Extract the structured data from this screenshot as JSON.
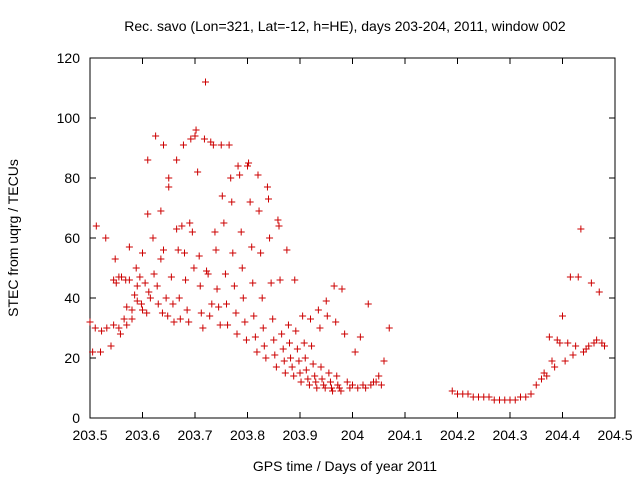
{
  "chart_data": {
    "type": "scatter",
    "title": "Rec. savo (Lon=321, Lat=-12, h=HE), days 203-204, 2011, window 002",
    "xlabel": "GPS time / Days of year 2011",
    "ylabel": "STEC from uqrg / TECUs",
    "xlim": [
      203.5,
      204.5
    ],
    "ylim": [
      0,
      120
    ],
    "xticks": [
      203.5,
      203.6,
      203.7,
      203.8,
      203.9,
      204,
      204.1,
      204.2,
      204.3,
      204.4,
      204.5
    ],
    "xtick_labels": [
      "203.5",
      "203.6",
      "203.7",
      "203.8",
      "203.9",
      "204",
      "204.1",
      "204.2",
      "204.3",
      "204.4",
      "204.5"
    ],
    "yticks": [
      0,
      20,
      40,
      60,
      80,
      100,
      120
    ],
    "ytick_labels": [
      "0",
      "20",
      "40",
      "60",
      "80",
      "100",
      "120"
    ],
    "marker": "+",
    "color": "#cc0000",
    "points": [
      [
        203.5,
        32
      ],
      [
        203.505,
        22
      ],
      [
        203.51,
        30
      ],
      [
        203.512,
        64
      ],
      [
        203.52,
        22
      ],
      [
        203.522,
        29
      ],
      [
        203.53,
        60
      ],
      [
        203.532,
        30
      ],
      [
        203.54,
        24
      ],
      [
        203.545,
        31
      ],
      [
        203.545,
        46
      ],
      [
        203.548,
        53
      ],
      [
        203.55,
        45
      ],
      [
        203.555,
        30
      ],
      [
        203.555,
        47
      ],
      [
        203.558,
        28
      ],
      [
        203.56,
        47
      ],
      [
        203.565,
        33
      ],
      [
        203.568,
        46
      ],
      [
        203.57,
        37
      ],
      [
        203.57,
        31
      ],
      [
        203.575,
        57
      ],
      [
        203.575,
        46
      ],
      [
        203.58,
        33
      ],
      [
        203.58,
        36
      ],
      [
        203.585,
        41
      ],
      [
        203.588,
        50
      ],
      [
        203.59,
        44
      ],
      [
        203.59,
        39
      ],
      [
        203.595,
        47
      ],
      [
        203.598,
        38
      ],
      [
        203.6,
        36
      ],
      [
        203.6,
        55
      ],
      [
        203.605,
        45
      ],
      [
        203.608,
        35
      ],
      [
        203.61,
        86
      ],
      [
        203.61,
        68
      ],
      [
        203.612,
        42
      ],
      [
        203.615,
        40
      ],
      [
        203.62,
        60
      ],
      [
        203.622,
        48
      ],
      [
        203.625,
        94
      ],
      [
        203.628,
        44
      ],
      [
        203.63,
        38
      ],
      [
        203.635,
        69
      ],
      [
        203.635,
        53
      ],
      [
        203.638,
        35
      ],
      [
        203.64,
        91
      ],
      [
        203.64,
        56
      ],
      [
        203.645,
        40
      ],
      [
        203.648,
        34
      ],
      [
        203.65,
        80
      ],
      [
        203.65,
        77
      ],
      [
        203.655,
        47
      ],
      [
        203.658,
        38
      ],
      [
        203.66,
        32
      ],
      [
        203.665,
        86
      ],
      [
        203.665,
        63
      ],
      [
        203.668,
        56
      ],
      [
        203.67,
        40
      ],
      [
        203.672,
        33
      ],
      [
        203.675,
        64
      ],
      [
        203.678,
        91
      ],
      [
        203.68,
        55
      ],
      [
        203.682,
        46
      ],
      [
        203.685,
        36
      ],
      [
        203.688,
        32
      ],
      [
        203.69,
        65
      ],
      [
        203.692,
        93
      ],
      [
        203.695,
        62
      ],
      [
        203.698,
        50
      ],
      [
        203.7,
        94
      ],
      [
        203.702,
        96
      ],
      [
        203.705,
        82
      ],
      [
        203.708,
        54
      ],
      [
        203.71,
        44
      ],
      [
        203.712,
        35
      ],
      [
        203.715,
        30
      ],
      [
        203.718,
        93
      ],
      [
        203.72,
        112
      ],
      [
        203.722,
        49
      ],
      [
        203.725,
        48
      ],
      [
        203.728,
        34
      ],
      [
        203.73,
        92
      ],
      [
        203.732,
        38
      ],
      [
        203.735,
        91
      ],
      [
        203.738,
        62
      ],
      [
        203.74,
        56
      ],
      [
        203.742,
        43
      ],
      [
        203.745,
        37
      ],
      [
        203.748,
        31
      ],
      [
        203.75,
        91
      ],
      [
        203.752,
        74
      ],
      [
        203.755,
        65
      ],
      [
        203.758,
        48
      ],
      [
        203.76,
        38
      ],
      [
        203.762,
        31
      ],
      [
        203.765,
        91
      ],
      [
        203.768,
        80
      ],
      [
        203.77,
        72
      ],
      [
        203.772,
        55
      ],
      [
        203.775,
        44
      ],
      [
        203.778,
        35
      ],
      [
        203.78,
        28
      ],
      [
        203.782,
        84
      ],
      [
        203.785,
        81
      ],
      [
        203.788,
        62
      ],
      [
        203.79,
        50
      ],
      [
        203.792,
        40
      ],
      [
        203.795,
        32
      ],
      [
        203.798,
        26
      ],
      [
        203.8,
        84
      ],
      [
        203.802,
        85
      ],
      [
        203.805,
        72
      ],
      [
        203.808,
        57
      ],
      [
        203.81,
        45
      ],
      [
        203.812,
        34
      ],
      [
        203.815,
        27
      ],
      [
        203.818,
        22
      ],
      [
        203.82,
        81
      ],
      [
        203.822,
        69
      ],
      [
        203.825,
        55
      ],
      [
        203.828,
        40
      ],
      [
        203.83,
        30
      ],
      [
        203.832,
        24
      ],
      [
        203.835,
        20
      ],
      [
        203.838,
        77
      ],
      [
        203.84,
        73
      ],
      [
        203.842,
        60
      ],
      [
        203.845,
        45
      ],
      [
        203.848,
        33
      ],
      [
        203.85,
        26
      ],
      [
        203.852,
        21
      ],
      [
        203.855,
        17
      ],
      [
        203.858,
        66
      ],
      [
        203.86,
        64
      ],
      [
        203.862,
        46
      ],
      [
        203.865,
        28
      ],
      [
        203.868,
        23
      ],
      [
        203.87,
        19
      ],
      [
        203.872,
        15
      ],
      [
        203.875,
        56
      ],
      [
        203.878,
        31
      ],
      [
        203.88,
        25
      ],
      [
        203.882,
        20
      ],
      [
        203.885,
        17
      ],
      [
        203.888,
        14
      ],
      [
        203.89,
        46
      ],
      [
        203.892,
        29
      ],
      [
        203.895,
        23
      ],
      [
        203.898,
        19
      ],
      [
        203.9,
        15
      ],
      [
        203.902,
        12
      ],
      [
        203.905,
        34
      ],
      [
        203.908,
        25
      ],
      [
        203.91,
        20
      ],
      [
        203.912,
        16
      ],
      [
        203.915,
        13
      ],
      [
        203.918,
        11
      ],
      [
        203.92,
        33
      ],
      [
        203.922,
        24
      ],
      [
        203.925,
        18
      ],
      [
        203.928,
        14
      ],
      [
        203.93,
        12
      ],
      [
        203.932,
        10
      ],
      [
        203.935,
        36
      ],
      [
        203.938,
        30
      ],
      [
        203.94,
        17
      ],
      [
        203.942,
        13
      ],
      [
        203.945,
        11
      ],
      [
        203.948,
        10
      ],
      [
        203.95,
        39
      ],
      [
        203.952,
        34
      ],
      [
        203.955,
        15
      ],
      [
        203.958,
        12
      ],
      [
        203.96,
        10
      ],
      [
        203.962,
        9
      ],
      [
        203.965,
        44
      ],
      [
        203.968,
        32
      ],
      [
        203.97,
        14
      ],
      [
        203.972,
        11
      ],
      [
        203.975,
        10
      ],
      [
        203.978,
        9
      ],
      [
        203.98,
        43
      ],
      [
        203.985,
        28
      ],
      [
        203.99,
        12
      ],
      [
        203.995,
        10
      ],
      [
        204.0,
        11
      ],
      [
        204.005,
        22
      ],
      [
        204.01,
        10
      ],
      [
        204.015,
        27
      ],
      [
        204.02,
        11
      ],
      [
        204.025,
        10
      ],
      [
        204.03,
        38
      ],
      [
        204.035,
        11
      ],
      [
        204.04,
        12
      ],
      [
        204.045,
        12
      ],
      [
        204.05,
        14
      ],
      [
        204.055,
        11
      ],
      [
        204.06,
        19
      ],
      [
        204.07,
        30
      ],
      [
        204.19,
        9
      ],
      [
        204.2,
        8
      ],
      [
        204.21,
        8
      ],
      [
        204.22,
        8
      ],
      [
        204.23,
        7
      ],
      [
        204.24,
        7
      ],
      [
        204.25,
        7
      ],
      [
        204.26,
        7
      ],
      [
        204.27,
        6
      ],
      [
        204.28,
        6
      ],
      [
        204.29,
        6
      ],
      [
        204.3,
        6
      ],
      [
        204.31,
        6
      ],
      [
        204.32,
        7
      ],
      [
        204.33,
        7
      ],
      [
        204.34,
        8
      ],
      [
        204.35,
        11
      ],
      [
        204.36,
        13
      ],
      [
        204.365,
        15
      ],
      [
        204.37,
        14
      ],
      [
        204.375,
        27
      ],
      [
        204.38,
        19
      ],
      [
        204.385,
        17
      ],
      [
        204.39,
        26
      ],
      [
        204.395,
        25
      ],
      [
        204.4,
        34
      ],
      [
        204.405,
        19
      ],
      [
        204.41,
        25
      ],
      [
        204.415,
        47
      ],
      [
        204.42,
        21
      ],
      [
        204.425,
        24
      ],
      [
        204.43,
        47
      ],
      [
        204.435,
        63
      ],
      [
        204.44,
        22
      ],
      [
        204.445,
        23
      ],
      [
        204.45,
        24
      ],
      [
        204.455,
        45
      ],
      [
        204.46,
        25
      ],
      [
        204.465,
        26
      ],
      [
        204.47,
        42
      ],
      [
        204.475,
        25
      ],
      [
        204.48,
        24
      ]
    ]
  }
}
